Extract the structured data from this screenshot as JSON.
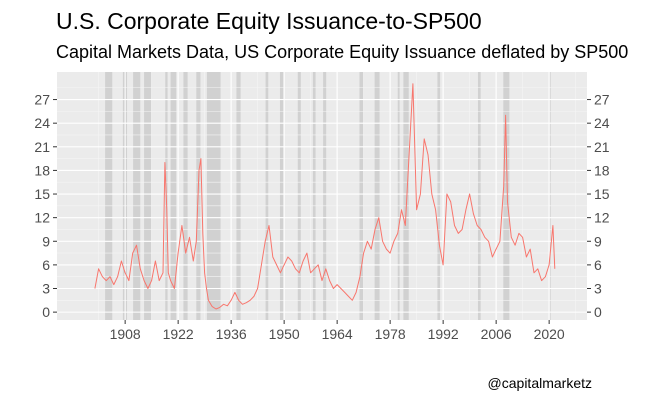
{
  "title": "U.S. Corporate Equity Issuance-to-SP500",
  "subtitle": "Capital Markets Data, US Corporate Equity Issuance deflated by SP500",
  "caption": "@capitalmarketz",
  "colors": {
    "panel": "#ebebeb",
    "grid_major": "#ffffff",
    "grid_minor": "#f5f5f5",
    "recession": "#cccccc",
    "line": "#f8766d",
    "tick_text": "#4d4d4d",
    "tick": "#333333"
  },
  "chart_data": {
    "type": "line",
    "title": "U.S. Corporate Equity Issuance-to-SP500",
    "subtitle": "Capital Markets Data, US Corporate Equity Issuance deflated by SP500",
    "xlabel": "",
    "ylabel": "",
    "xlim": [
      1890,
      2030
    ],
    "ylim": [
      -1,
      30.5
    ],
    "x_ticks": [
      1908,
      1922,
      1936,
      1950,
      1964,
      1978,
      1992,
      2006,
      2020
    ],
    "y_ticks": [
      0,
      3,
      6,
      9,
      12,
      15,
      18,
      21,
      24,
      27
    ],
    "secondary_y_axis": true,
    "grid": true,
    "legend": "none",
    "recessions": [
      [
        1902.7,
        1904.6
      ],
      [
        1907.4,
        1908.5
      ],
      [
        1910.1,
        1912.0
      ],
      [
        1913.0,
        1914.9
      ],
      [
        1918.6,
        1919.2
      ],
      [
        1920.0,
        1921.5
      ],
      [
        1923.4,
        1924.5
      ],
      [
        1926.8,
        1927.9
      ],
      [
        1929.6,
        1933.2
      ],
      [
        1937.4,
        1938.5
      ],
      [
        1945.1,
        1945.8
      ],
      [
        1948.9,
        1949.8
      ],
      [
        1953.6,
        1954.4
      ],
      [
        1957.6,
        1958.3
      ],
      [
        1960.3,
        1961.1
      ],
      [
        1969.9,
        1970.9
      ],
      [
        1973.9,
        1975.2
      ],
      [
        1980.0,
        1980.5
      ],
      [
        1981.5,
        1982.9
      ],
      [
        1990.5,
        1991.2
      ],
      [
        2001.2,
        2001.9
      ],
      [
        2007.9,
        2009.5
      ],
      [
        2020.1,
        2020.4
      ]
    ],
    "series": [
      {
        "x": [
          1900,
          1901,
          1902,
          1903,
          1904,
          1905,
          1906,
          1907,
          1908,
          1909,
          1910,
          1911,
          1912,
          1913,
          1914,
          1915,
          1916,
          1917,
          1918,
          1918.5,
          1919,
          1919.4,
          1920,
          1921,
          1922,
          1923,
          1924,
          1925,
          1926,
          1926.8,
          1927.5,
          1928,
          1928.5,
          1929,
          1929.5,
          1930,
          1931,
          1932,
          1933,
          1934,
          1935,
          1936,
          1937,
          1938,
          1939,
          1940,
          1941,
          1942,
          1943,
          1944,
          1945,
          1946,
          1947,
          1948,
          1949,
          1950,
          1951,
          1952,
          1953,
          1954,
          1955,
          1956,
          1957,
          1958,
          1959,
          1960,
          1961,
          1962,
          1963,
          1964,
          1965,
          1966,
          1967,
          1968,
          1969,
          1970,
          1971,
          1972,
          1973,
          1974,
          1975,
          1976,
          1977,
          1978,
          1979,
          1980,
          1981,
          1982,
          1983,
          1984,
          1985,
          1986,
          1987,
          1988,
          1989,
          1990,
          1991,
          1992,
          1993,
          1994,
          1995,
          1996,
          1997,
          1998,
          1999,
          2000,
          2001,
          2002,
          2003,
          2004,
          2005,
          2006,
          2007,
          2008,
          2008.5,
          2009,
          2010,
          2011,
          2012,
          2013,
          2014,
          2015,
          2016,
          2017,
          2018,
          2019,
          2020,
          2021,
          2021.5
        ],
        "values": [
          3.0,
          5.5,
          4.5,
          4.0,
          4.5,
          3.5,
          4.5,
          6.5,
          5.0,
          4.0,
          7.5,
          8.5,
          5.5,
          4.0,
          3.0,
          4.0,
          6.5,
          4.0,
          5.0,
          19.0,
          13.0,
          5.0,
          4.0,
          3.0,
          7.5,
          11.0,
          7.5,
          9.5,
          6.5,
          9.0,
          18.0,
          19.5,
          10.0,
          5.0,
          3.0,
          1.5,
          0.7,
          0.4,
          0.6,
          1.0,
          0.8,
          1.5,
          2.5,
          1.5,
          1.0,
          1.2,
          1.5,
          2.0,
          3.0,
          6.0,
          9.0,
          11.0,
          7.0,
          6.0,
          5.0,
          6.0,
          7.0,
          6.5,
          5.5,
          5.0,
          6.5,
          7.5,
          5.0,
          5.5,
          6.0,
          4.0,
          5.5,
          4.0,
          3.0,
          3.5,
          3.0,
          2.5,
          2.0,
          1.5,
          2.5,
          4.5,
          7.5,
          9.0,
          8.0,
          10.5,
          12.0,
          9.0,
          8.0,
          7.5,
          9.0,
          10.0,
          13.0,
          11.0,
          20.0,
          29.0,
          13.0,
          15.0,
          22.0,
          20.0,
          15.0,
          13.0,
          8.5,
          6.0,
          15.0,
          14.0,
          11.0,
          10.0,
          10.5,
          13.0,
          15.0,
          12.5,
          11.0,
          10.5,
          9.5,
          9.0,
          7.0,
          8.0,
          9.0,
          16.0,
          25.0,
          14.0,
          9.5,
          8.5,
          10.0,
          9.5,
          7.0,
          8.0,
          5.0,
          5.5,
          4.0,
          4.5,
          6.0,
          11.0,
          5.5
        ]
      }
    ]
  }
}
